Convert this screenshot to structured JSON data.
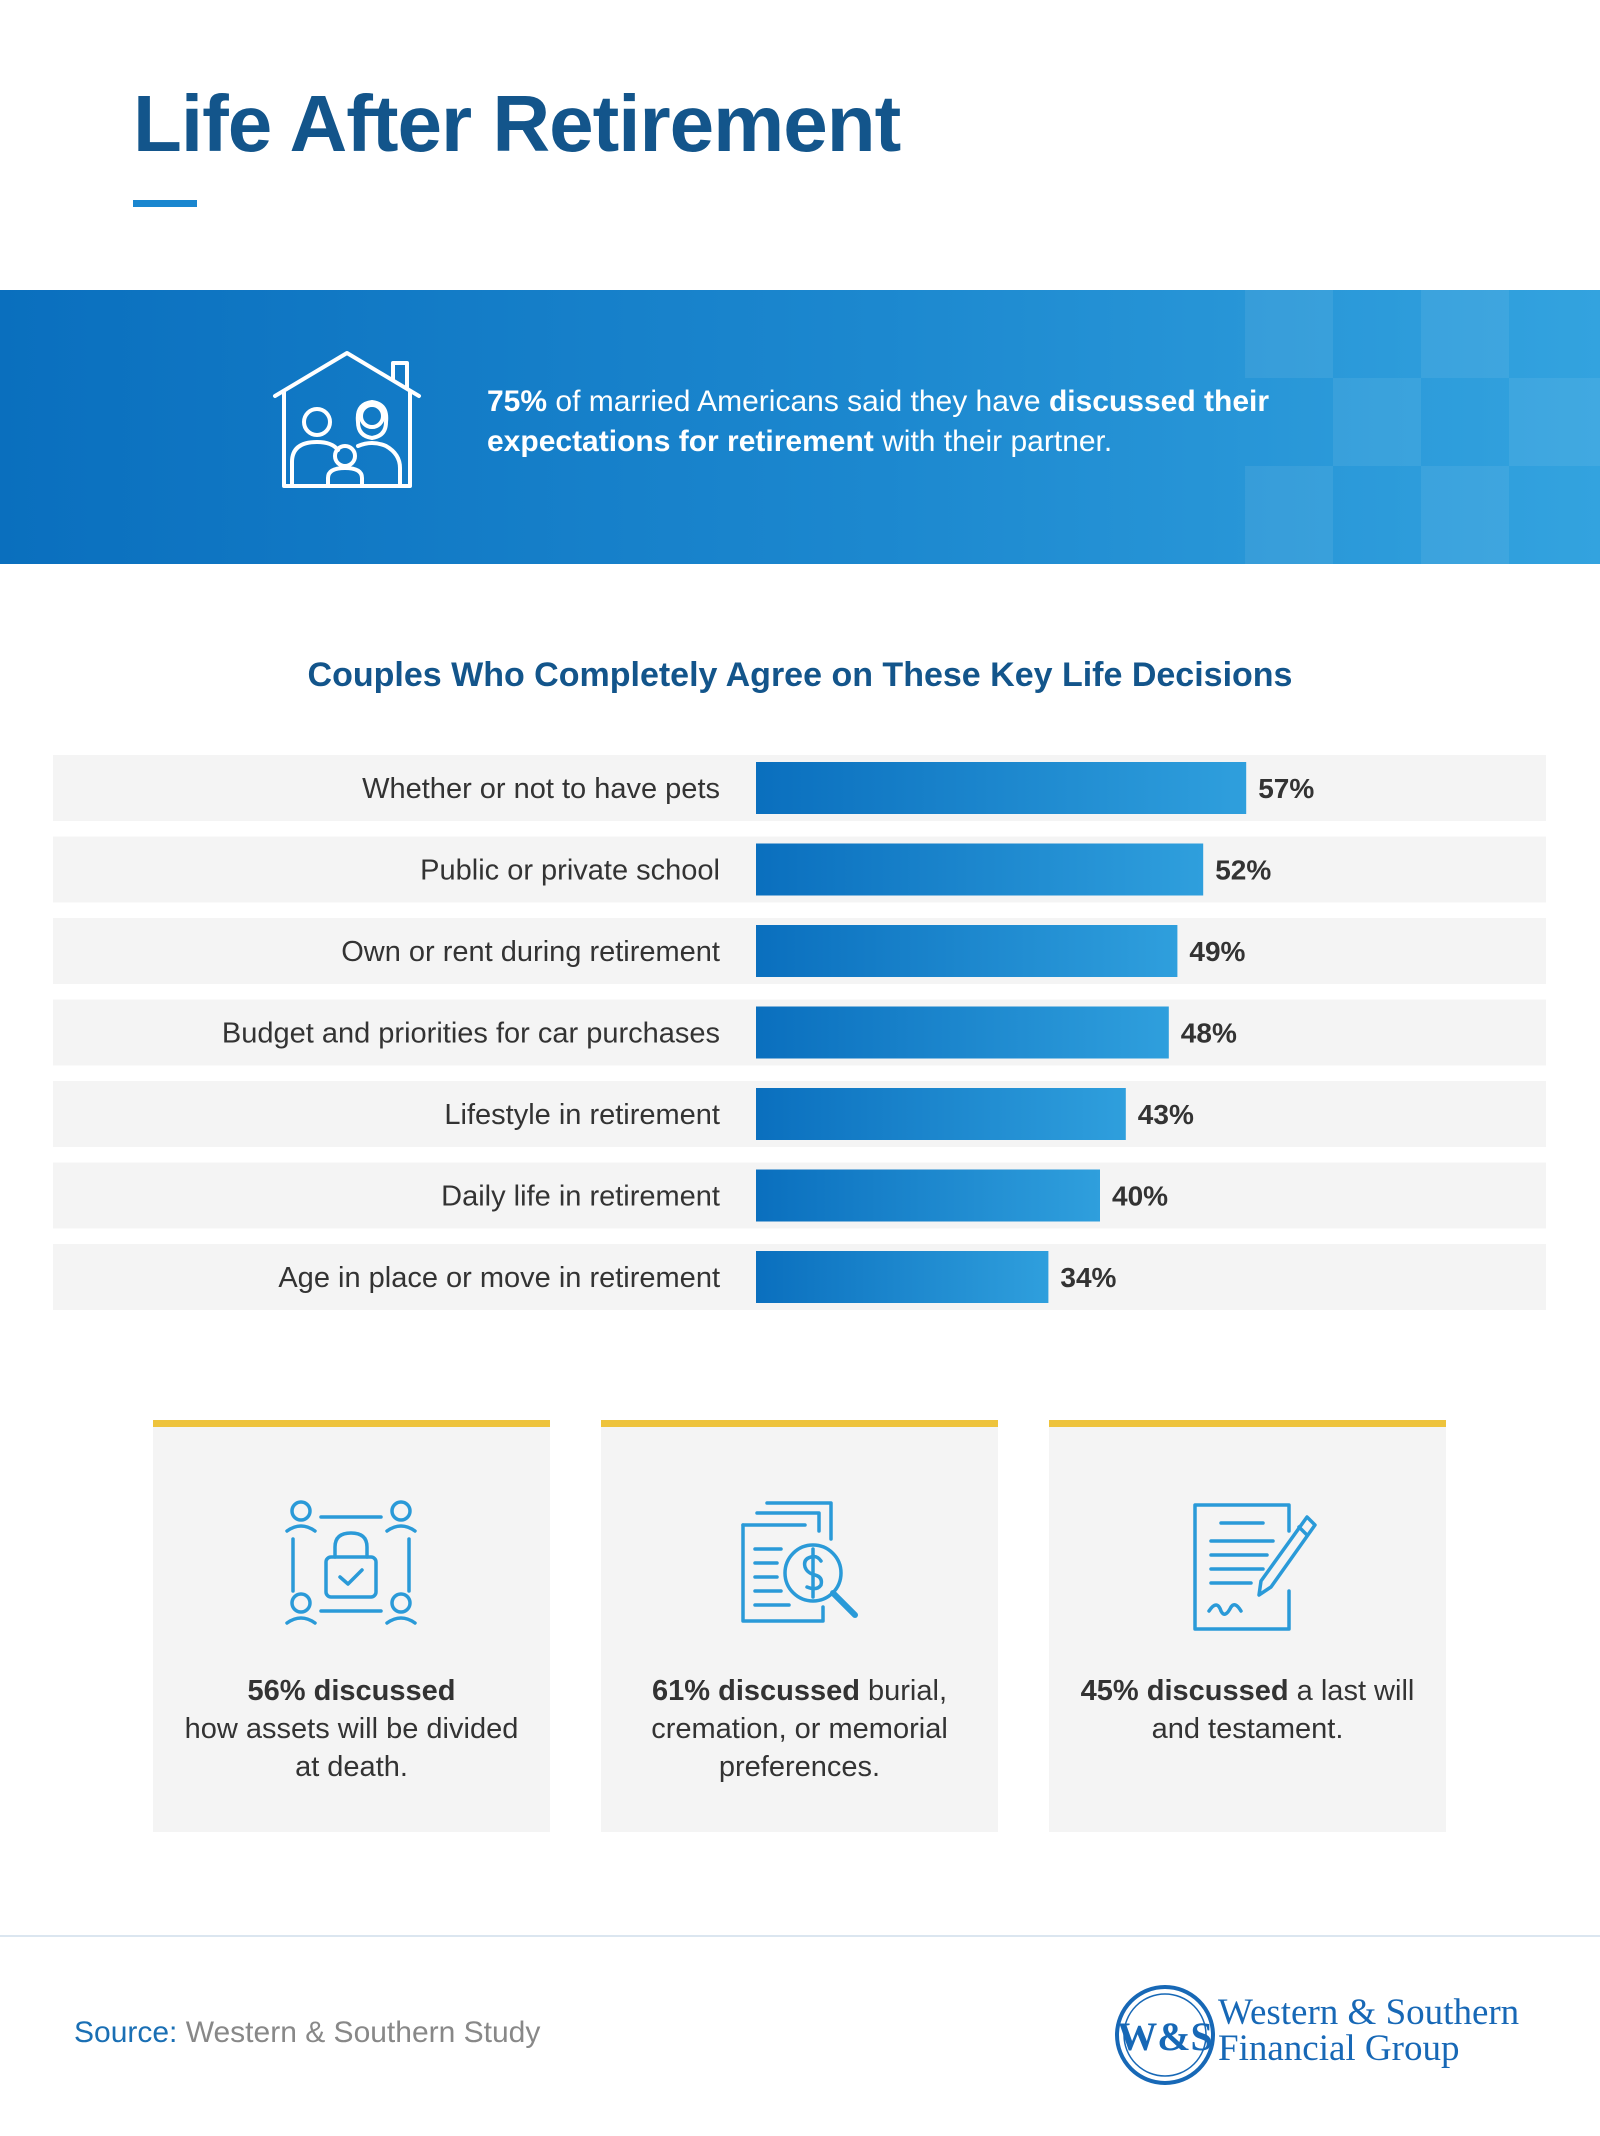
{
  "header": {
    "title": "Life After Retirement"
  },
  "banner": {
    "stat": "75%",
    "text_before_bold": " of married Americans said they have ",
    "bold_text": "discussed their expectations for retirement",
    "text_after_bold": " with their partner.",
    "icon": "family-house-icon"
  },
  "chart_data": {
    "type": "bar",
    "orientation": "horizontal",
    "title": "Couples Who Completely Agree on These Key Life Decisions",
    "categories": [
      "Whether or not to have pets",
      "Public or private school",
      "Own or rent during retirement",
      "Budget and priorities for car purchases",
      "Lifestyle in retirement",
      "Daily life in retirement",
      "Age in place or move in retirement"
    ],
    "values": [
      57,
      52,
      49,
      48,
      43,
      40,
      34
    ],
    "value_labels": [
      "57%",
      "52%",
      "49%",
      "48%",
      "43%",
      "40%",
      "34%"
    ],
    "unit": "%",
    "xlim": [
      0,
      100
    ],
    "grid": false,
    "colors": {
      "bar_start": "#0a6fbe",
      "bar_end": "#2f9fdd",
      "row_bg": "#f4f4f4"
    }
  },
  "cards": [
    {
      "icon": "shared-assets-lock-icon",
      "bold": "56% discussed",
      "text": "how assets will be divided at death."
    },
    {
      "icon": "document-dollar-search-icon",
      "bold": "61% discussed",
      "text": " burial, cremation, or memorial preferences."
    },
    {
      "icon": "will-signing-pen-icon",
      "bold": "45% discussed",
      "text": " a last will and testament."
    }
  ],
  "footer": {
    "source_label": "Source:",
    "source_text": " Western & Southern Study",
    "logo_monogram": "W&S",
    "logo_line1": "Western & Southern",
    "logo_line2": "Financial Group"
  },
  "colors": {
    "primary_blue": "#13558b",
    "accent_blue": "#1a86cf",
    "card_accent_yellow": "#eec33c",
    "icon_blue": "#2a9ad8"
  }
}
